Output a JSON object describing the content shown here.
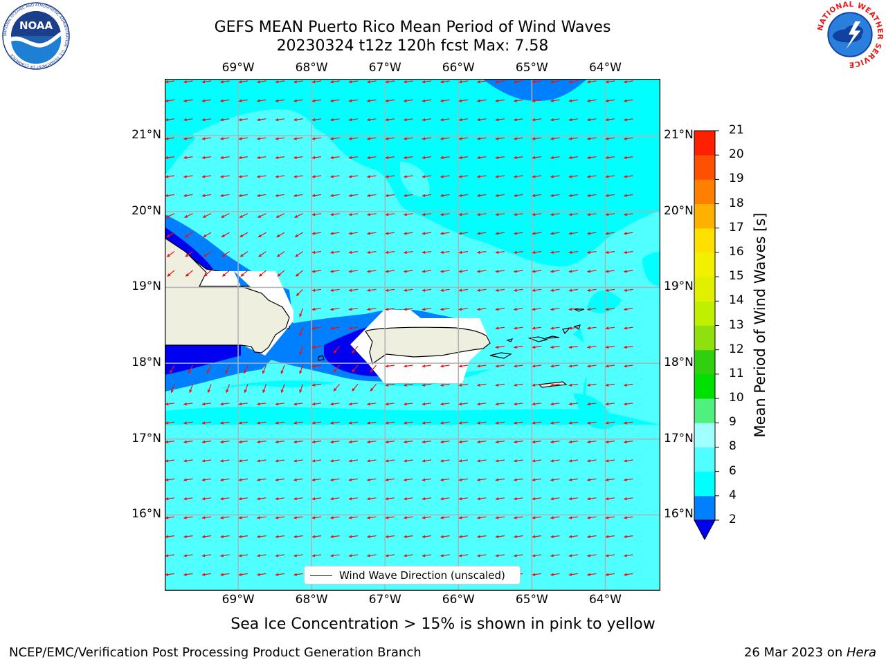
{
  "header": {
    "title_line1": "GEFS MEAN Puerto Rico Mean Period of Wind Waves",
    "title_line2": "20230324 t12z 120h fcst   Max: 7.58"
  },
  "logos": {
    "left": {
      "name": "NOAA",
      "text": "NOAA",
      "ring_text": "NATIONAL OCEANIC AND ATMOSPHERIC ADMINISTRATION · U.S. DEPARTMENT OF COMMERCE"
    },
    "right": {
      "name": "National Weather Service",
      "ring_text": "NATIONAL WEATHER SERVICE"
    }
  },
  "map": {
    "lon_ticks": [
      "69°W",
      "68°W",
      "67°W",
      "66°W",
      "65°W",
      "64°W"
    ],
    "lon_values": [
      -69,
      -68,
      -67,
      -66,
      -65,
      -64
    ],
    "lat_ticks": [
      "21°N",
      "20°N",
      "19°N",
      "18°N",
      "17°N",
      "16°N"
    ],
    "lat_values": [
      21,
      20,
      19,
      18,
      17,
      16
    ],
    "extent": {
      "lon_min": -70.0,
      "lon_max": -63.25,
      "lat_min": 15.0,
      "lat_max": 21.75
    },
    "grid": true,
    "colors": {
      "ocean_4_6": "#00ffff",
      "ocean_6_8": "#50ffff",
      "ocean_2_4": "#0080ff",
      "ocean_lt_2": "#0000f0",
      "land": "#efefdf",
      "arrow": "#ee1111"
    },
    "arrows_direction": "toward west (easterly wind waves)"
  },
  "legend": {
    "label": "Wind Wave Direction (unscaled)"
  },
  "colorbar": {
    "title": "Mean Period of Wind Waves [s]",
    "levels": [
      2,
      4,
      6,
      8,
      9,
      10,
      11,
      12,
      13,
      14,
      15,
      16,
      17,
      18,
      19,
      20,
      21
    ],
    "labels": [
      "2",
      "4",
      "6",
      "8",
      "9",
      "10",
      "11",
      "12",
      "13",
      "14",
      "15",
      "16",
      "17",
      "18",
      "19",
      "20",
      "21"
    ],
    "colors": [
      "#0080ff",
      "#00ffff",
      "#50ffff",
      "#a0ffff",
      "#50f080",
      "#00e000",
      "#30d010",
      "#90e010",
      "#c0f000",
      "#e0f000",
      "#f0f000",
      "#ffe000",
      "#ffb000",
      "#ff8000",
      "#ff5000",
      "#ff2000"
    ],
    "extend_min_color": "#0000f0"
  },
  "footer": {
    "subtitle": "Sea Ice Concentration > 15% is shown in pink to yellow",
    "left": "NCEP/EMC/Verification Post Processing Product Generation Branch",
    "right_prefix": "26 Mar 2023 on ",
    "right_host": "Hera"
  }
}
